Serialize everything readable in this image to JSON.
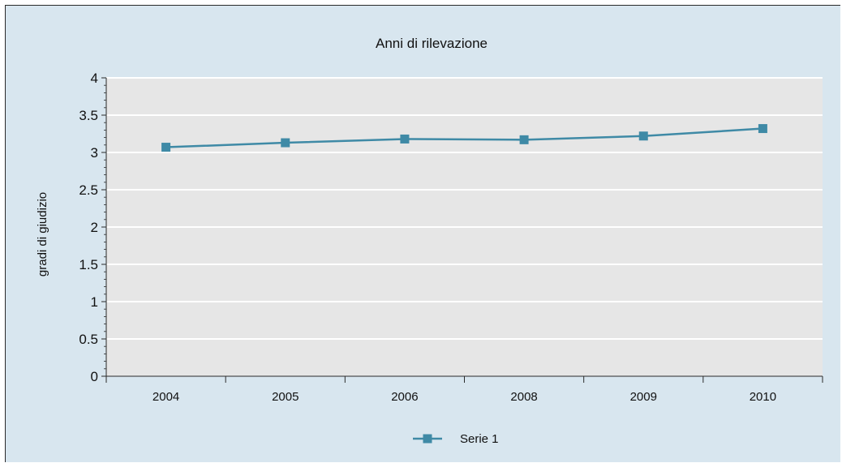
{
  "chart_data": {
    "type": "line",
    "title": "Anni di rilevazione",
    "xlabel": "",
    "ylabel": "gradi di giudizio",
    "categories": [
      "2004",
      "2005",
      "2006",
      "2008",
      "2009",
      "2010"
    ],
    "series": [
      {
        "name": "Serie 1",
        "values": [
          3.07,
          3.13,
          3.18,
          3.17,
          3.22,
          3.32
        ]
      }
    ],
    "ylim": [
      0,
      4
    ],
    "yticks": [
      "0",
      "0.5",
      "1",
      "1.5",
      "2",
      "2.5",
      "3",
      "3.5",
      "4"
    ],
    "grid": true,
    "legend": "bottom-center",
    "colors": {
      "frame_background": "#d8e6ef",
      "plot_background": "#e6e6e6",
      "gridline": "#ffffff",
      "series": "#3f8aa6",
      "marker": "#3f8aa6",
      "axis": "#2a2a2a"
    }
  }
}
